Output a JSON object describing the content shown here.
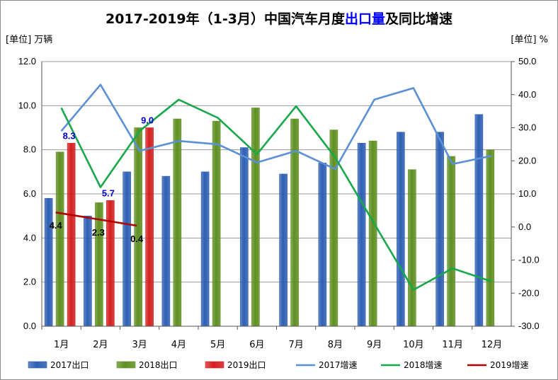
{
  "chart_data": {
    "type": "bar",
    "title": {
      "part1": "2017-2019年（1-3月）中国汽车月度",
      "highlight": "出口量",
      "part2": "及同比增速"
    },
    "y_left_unit": "[单位] 万辆",
    "y_right_unit": "[单位] %",
    "categories": [
      "1月",
      "2月",
      "3月",
      "4月",
      "5月",
      "6月",
      "7月",
      "8月",
      "9月",
      "10月",
      "11月",
      "12月"
    ],
    "y_left": {
      "min": 0,
      "max": 12,
      "ticks": [
        "0.0",
        "2.0",
        "4.0",
        "6.0",
        "8.0",
        "10.0",
        "12.0"
      ]
    },
    "y_right": {
      "min": -30,
      "max": 50,
      "ticks": [
        "-30.0",
        "-20.0",
        "-10.0",
        "0.0",
        "10.0",
        "20.0",
        "30.0",
        "40.0",
        "50.0"
      ]
    },
    "bar_series": [
      {
        "name": "2017出口",
        "color": "#2e5fb3",
        "values": [
          5.8,
          5.0,
          7.0,
          6.8,
          7.0,
          8.1,
          6.9,
          7.4,
          8.3,
          8.8,
          8.8,
          9.6
        ]
      },
      {
        "name": "2018出口",
        "color": "#5f8f22",
        "values": [
          7.9,
          5.6,
          9.0,
          9.4,
          9.3,
          9.9,
          9.4,
          8.9,
          8.4,
          7.1,
          7.7,
          8.0
        ]
      },
      {
        "name": "2019出口",
        "color": "#d42020",
        "values": [
          8.3,
          5.7,
          9.0,
          null,
          null,
          null,
          null,
          null,
          null,
          null,
          null,
          null
        ]
      }
    ],
    "line_series": [
      {
        "name": "2017增速",
        "color": "#5b8fd6",
        "values": [
          29.0,
          43.0,
          23.0,
          26.0,
          25.0,
          19.5,
          23.0,
          17.5,
          38.5,
          42.0,
          19.0,
          21.5
        ]
      },
      {
        "name": "2018增速",
        "color": "#17a84a",
        "values": [
          36.0,
          12.0,
          29.0,
          38.5,
          33.0,
          22.0,
          36.5,
          21.0,
          1.0,
          -19.0,
          -12.5,
          -16.5
        ]
      },
      {
        "name": "2019增速",
        "color": "#b30000",
        "values": [
          4.4,
          2.3,
          0.4,
          null,
          null,
          null,
          null,
          null,
          null,
          null,
          null,
          null
        ]
      }
    ],
    "bar_labels_2019": [
      "8.3",
      "5.7",
      "9.0"
    ],
    "growth_labels_2019": [
      "4.4",
      "2.3",
      "0.4"
    ],
    "legend_position": "bottom"
  }
}
